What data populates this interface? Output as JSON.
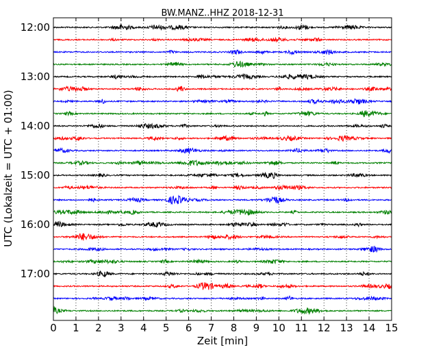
{
  "chart_data": {
    "type": "line",
    "title": "BW.MANZ..HHZ 2018-12-31",
    "xlabel": "Zeit  [min]",
    "ylabel": "UTC (Lokalzeit = UTC + 01:00)",
    "xlim": [
      0,
      15
    ],
    "x_ticks": [
      "0",
      "1",
      "2",
      "3",
      "4",
      "5",
      "6",
      "7",
      "8",
      "9",
      "10",
      "11",
      "12",
      "13",
      "14",
      "15"
    ],
    "y_ticks": [
      "12:00",
      "13:00",
      "14:00",
      "15:00",
      "16:00",
      "17:00"
    ],
    "trace_interval_minutes": 15,
    "start_time": "12:00",
    "end_time": "18:00",
    "color_cycle": [
      "#000000",
      "#ff0000",
      "#0000ff",
      "#008000"
    ],
    "traces": [
      {
        "start": "12:00",
        "color": "#000000"
      },
      {
        "start": "12:15",
        "color": "#ff0000"
      },
      {
        "start": "12:30",
        "color": "#0000ff"
      },
      {
        "start": "12:45",
        "color": "#008000"
      },
      {
        "start": "13:00",
        "color": "#000000"
      },
      {
        "start": "13:15",
        "color": "#ff0000"
      },
      {
        "start": "13:30",
        "color": "#0000ff"
      },
      {
        "start": "13:45",
        "color": "#008000"
      },
      {
        "start": "14:00",
        "color": "#000000"
      },
      {
        "start": "14:15",
        "color": "#ff0000"
      },
      {
        "start": "14:30",
        "color": "#0000ff"
      },
      {
        "start": "14:45",
        "color": "#008000"
      },
      {
        "start": "15:00",
        "color": "#000000"
      },
      {
        "start": "15:15",
        "color": "#ff0000"
      },
      {
        "start": "15:30",
        "color": "#0000ff"
      },
      {
        "start": "15:45",
        "color": "#008000"
      },
      {
        "start": "16:00",
        "color": "#000000"
      },
      {
        "start": "16:15",
        "color": "#ff0000"
      },
      {
        "start": "16:30",
        "color": "#0000ff"
      },
      {
        "start": "16:45",
        "color": "#008000"
      },
      {
        "start": "17:00",
        "color": "#000000"
      },
      {
        "start": "17:15",
        "color": "#ff0000"
      },
      {
        "start": "17:30",
        "color": "#0000ff"
      },
      {
        "start": "17:45",
        "color": "#008000"
      }
    ],
    "grid": "vertical dotted",
    "legend": "none"
  }
}
